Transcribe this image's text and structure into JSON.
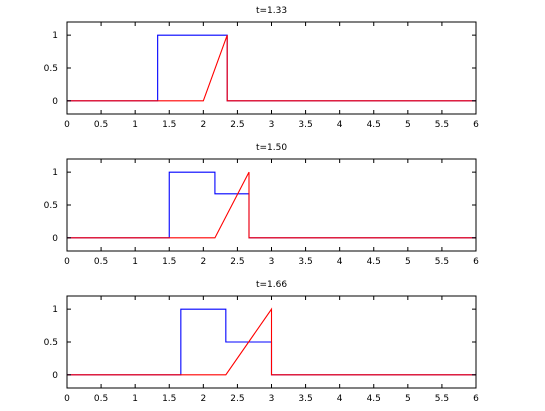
{
  "chart_data": [
    {
      "type": "line",
      "title": "t=1.33",
      "xlim": [
        0,
        6
      ],
      "ylim": [
        -0.2,
        1.2
      ],
      "xticks": [
        0,
        0.5,
        1,
        1.5,
        2,
        2.5,
        3,
        3.5,
        4,
        4.5,
        5,
        5.5,
        6
      ],
      "xtick_labels": [
        "0",
        "0.5",
        "1",
        "1.5",
        "2",
        "2.5",
        "3",
        "3.5",
        "4",
        "4.5",
        "5",
        "5.5",
        "6"
      ],
      "yticks": [
        0,
        0.5,
        1
      ],
      "ytick_labels": [
        "0",
        "0.5",
        "1"
      ],
      "grid": false,
      "series": [
        {
          "color": "#0000ff",
          "points": [
            [
              0,
              0
            ],
            [
              1.33,
              0
            ],
            [
              1.33,
              1
            ],
            [
              2.35,
              1
            ],
            [
              2.35,
              0
            ],
            [
              6,
              0
            ]
          ]
        },
        {
          "color": "#ff0000",
          "points": [
            [
              0,
              0
            ],
            [
              2.0,
              0
            ],
            [
              2.35,
              1
            ],
            [
              2.35,
              0
            ],
            [
              6,
              0
            ]
          ]
        }
      ]
    },
    {
      "type": "line",
      "title": "t=1.50",
      "xlim": [
        0,
        6
      ],
      "ylim": [
        -0.2,
        1.2
      ],
      "xticks": [
        0,
        0.5,
        1,
        1.5,
        2,
        2.5,
        3,
        3.5,
        4,
        4.5,
        5,
        5.5,
        6
      ],
      "xtick_labels": [
        "0",
        "0.5",
        "1",
        "1.5",
        "2",
        "2.5",
        "3",
        "3.5",
        "4",
        "4.5",
        "5",
        "5.5",
        "6"
      ],
      "yticks": [
        0,
        0.5,
        1
      ],
      "ytick_labels": [
        "0",
        "0.5",
        "1"
      ],
      "grid": false,
      "series": [
        {
          "color": "#0000ff",
          "points": [
            [
              0,
              0
            ],
            [
              1.5,
              0
            ],
            [
              1.5,
              1
            ],
            [
              2.17,
              1
            ],
            [
              2.17,
              0.67
            ],
            [
              2.67,
              0.67
            ],
            [
              2.67,
              0
            ],
            [
              6,
              0
            ]
          ]
        },
        {
          "color": "#ff0000",
          "points": [
            [
              0,
              0
            ],
            [
              2.17,
              0
            ],
            [
              2.67,
              1
            ],
            [
              2.67,
              0
            ],
            [
              6,
              0
            ]
          ]
        }
      ]
    },
    {
      "type": "line",
      "title": "t=1.66",
      "xlim": [
        0,
        6
      ],
      "ylim": [
        -0.2,
        1.2
      ],
      "xticks": [
        0,
        0.5,
        1,
        1.5,
        2,
        2.5,
        3,
        3.5,
        4,
        4.5,
        5,
        5.5,
        6
      ],
      "xtick_labels": [
        "0",
        "0.5",
        "1",
        "1.5",
        "2",
        "2.5",
        "3",
        "3.5",
        "4",
        "4.5",
        "5",
        "5.5",
        "6"
      ],
      "yticks": [
        0,
        0.5,
        1
      ],
      "ytick_labels": [
        "0",
        "0.5",
        "1"
      ],
      "grid": false,
      "series": [
        {
          "color": "#0000ff",
          "points": [
            [
              0,
              0
            ],
            [
              1.67,
              0
            ],
            [
              1.67,
              1
            ],
            [
              2.33,
              1
            ],
            [
              2.33,
              0.5
            ],
            [
              3.0,
              0.5
            ],
            [
              3.0,
              0
            ],
            [
              6,
              0
            ]
          ]
        },
        {
          "color": "#ff0000",
          "points": [
            [
              0,
              0
            ],
            [
              2.33,
              0
            ],
            [
              3.0,
              1
            ],
            [
              3.0,
              0
            ],
            [
              6,
              0
            ]
          ]
        }
      ]
    }
  ]
}
